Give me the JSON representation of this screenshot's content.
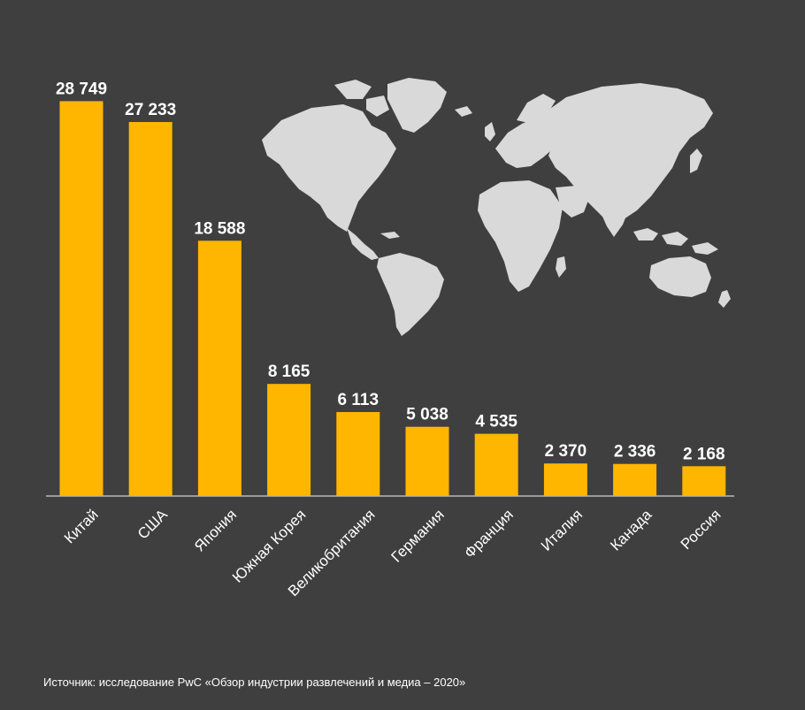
{
  "colors": {
    "background": "#3f3f3f",
    "bar": "#ffb600",
    "map": "#d9d9d9",
    "text": "#ffffff",
    "axis": "#d0d0d0"
  },
  "chart_data": {
    "type": "bar",
    "title": "",
    "xlabel": "",
    "ylabel": "",
    "ylim": [
      0,
      30000
    ],
    "grid": false,
    "categories": [
      "Китай",
      "США",
      "Япония",
      "Южная Корея",
      "Великобритания",
      "Германия",
      "Франция",
      "Италия",
      "Канада",
      "Россия"
    ],
    "values": [
      28749,
      27233,
      18588,
      8165,
      6113,
      5038,
      4535,
      2370,
      2336,
      2168
    ],
    "value_labels": [
      "28 749",
      "27 233",
      "18 588",
      "8 165",
      "6 113",
      "5 038",
      "4 535",
      "2 370",
      "2 336",
      "2 168"
    ]
  },
  "decoration": {
    "map_icon": "world-map-icon"
  },
  "footer": {
    "source": "Источник: исследование PwC «Обзор индустрии развлечений и медиа – 2020»"
  }
}
